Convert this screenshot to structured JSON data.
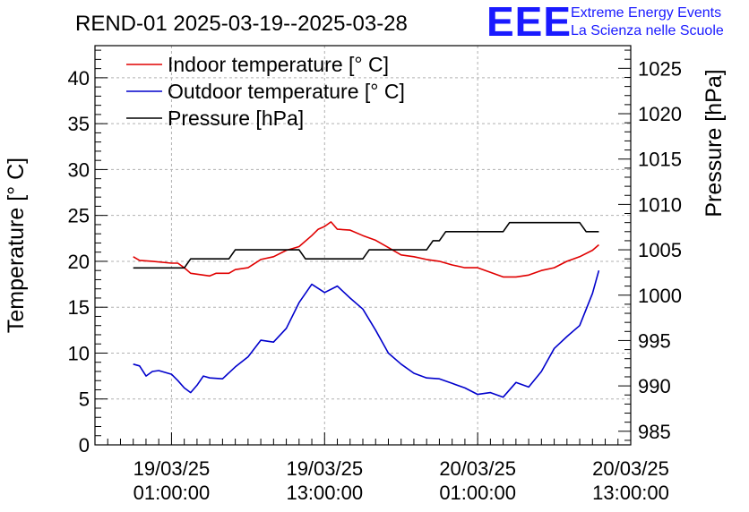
{
  "chart_data": {
    "type": "line",
    "title": "REND-01 2025-03-19--2025-03-28",
    "xlabel": "",
    "ylabel": "Temperature [° C]",
    "y2label": "Pressure [hPa]",
    "ylim": [
      0,
      43.5
    ],
    "y2lim": [
      983.5,
      1027.5
    ],
    "xlim": [
      -6,
      36
    ],
    "xunit": "hours since 2025-03-19 01:00:00",
    "xticks": [
      {
        "x": 0,
        "line1": "19/03/25",
        "line2": "01:00:00"
      },
      {
        "x": 12,
        "line1": "19/03/25",
        "line2": "13:00:00"
      },
      {
        "x": 24,
        "line1": "20/03/25",
        "line2": "01:00:00"
      },
      {
        "x": 36,
        "line1": "20/03/25",
        "line2": "13:00:00"
      }
    ],
    "yticks": [
      0,
      5,
      10,
      15,
      20,
      25,
      30,
      35,
      40
    ],
    "y2ticks": [
      985,
      990,
      995,
      1000,
      1005,
      1010,
      1015,
      1020,
      1025
    ],
    "grid": true,
    "legend_position": "top-left",
    "series": [
      {
        "name": "Indoor temperature [° C]",
        "axis": "left",
        "color": "#e00000",
        "x": [
          -3,
          -2.5,
          -1.5,
          0,
          0.5,
          1,
          1.5,
          2,
          3,
          3.5,
          4.5,
          5,
          6,
          7,
          8,
          9,
          9.5,
          10,
          11,
          11.5,
          12,
          12.5,
          13,
          14,
          15,
          16,
          17,
          18,
          19,
          20,
          21,
          22,
          23,
          24,
          25,
          26,
          27,
          28,
          29,
          30,
          31,
          32,
          33,
          33.5
        ],
        "values": [
          20.5,
          20.1,
          20.0,
          19.8,
          19.8,
          19.3,
          18.7,
          18.6,
          18.4,
          18.7,
          18.7,
          19.1,
          19.3,
          20.2,
          20.5,
          21.2,
          21.4,
          21.6,
          22.8,
          23.5,
          23.8,
          24.3,
          23.5,
          23.4,
          22.8,
          22.3,
          21.5,
          20.7,
          20.5,
          20.2,
          20.0,
          19.6,
          19.3,
          19.3,
          18.8,
          18.3,
          18.3,
          18.5,
          19.0,
          19.3,
          20.0,
          20.5,
          21.2,
          21.8
        ]
      },
      {
        "name": "Outdoor temperature [° C]",
        "axis": "left",
        "color": "#0000cc",
        "x": [
          -3,
          -2.5,
          -2,
          -1.5,
          -1,
          0,
          0.5,
          1,
          1.5,
          2,
          2.5,
          3,
          4,
          5,
          6,
          7,
          8,
          9,
          10,
          11,
          12,
          13,
          14,
          15,
          16,
          17,
          18,
          19,
          20,
          21,
          22,
          23,
          24,
          25,
          26,
          27,
          28,
          29,
          30,
          31,
          32,
          33,
          33.5
        ],
        "values": [
          8.8,
          8.6,
          7.5,
          8.0,
          8.1,
          7.7,
          7.0,
          6.2,
          5.7,
          6.5,
          7.5,
          7.3,
          7.2,
          8.5,
          9.6,
          11.4,
          11.2,
          12.7,
          15.5,
          17.5,
          16.6,
          17.3,
          16.0,
          14.8,
          12.5,
          10.0,
          8.8,
          7.8,
          7.3,
          7.2,
          6.7,
          6.2,
          5.5,
          5.7,
          5.2,
          6.8,
          6.3,
          8.0,
          10.5,
          11.8,
          13.0,
          16.5,
          19.0
        ]
      },
      {
        "name": "Pressure [hPa]",
        "axis": "right",
        "color": "#000000",
        "x": [
          -3,
          1,
          1.5,
          4.5,
          5,
          10,
          10.5,
          15,
          15.5,
          20,
          20.5,
          21,
          21.5,
          26,
          26.5,
          32,
          32.5,
          33.5
        ],
        "values": [
          1003,
          1003,
          1004,
          1004,
          1005,
          1005,
          1004,
          1004,
          1005,
          1005,
          1006,
          1006,
          1007,
          1007,
          1008,
          1008,
          1007,
          1007
        ]
      }
    ]
  },
  "logo": {
    "mark": "EEE",
    "line1": "Extreme Energy Events",
    "line2": "La Scienza nelle Scuole"
  }
}
